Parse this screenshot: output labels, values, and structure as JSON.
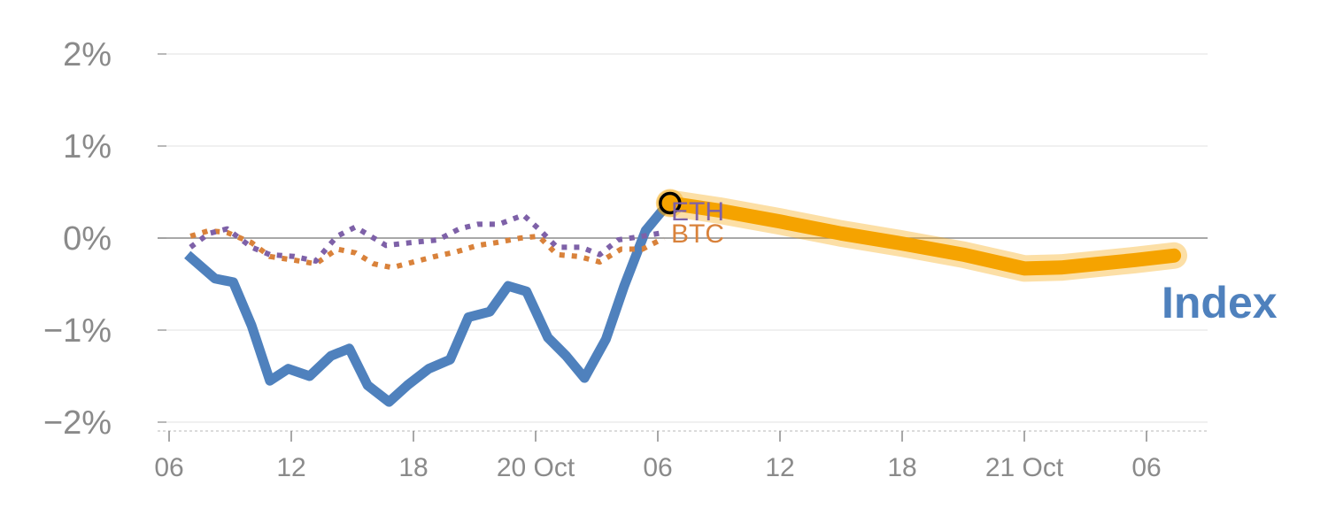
{
  "chart_data": {
    "type": "line",
    "ylim": [
      -2.1,
      2.0
    ],
    "xlim": [
      -0.5,
      16.5
    ],
    "grid": true,
    "yticks": [
      {
        "value": 2,
        "label": "2%"
      },
      {
        "value": 1,
        "label": "1%"
      },
      {
        "value": 0,
        "label": "0%"
      },
      {
        "value": -1,
        "label": "−1%"
      },
      {
        "value": -2,
        "label": "−2%"
      }
    ],
    "xticks": [
      {
        "value": 0,
        "label": "06"
      },
      {
        "value": 2,
        "label": "12"
      },
      {
        "value": 4,
        "label": "18"
      },
      {
        "value": 6,
        "label": "20 Oct"
      },
      {
        "value": 8,
        "label": "06"
      },
      {
        "value": 10,
        "label": "12"
      },
      {
        "value": 12,
        "label": "18"
      },
      {
        "value": 14,
        "label": "21 Oct"
      },
      {
        "value": 16,
        "label": "06"
      }
    ],
    "series": [
      {
        "name": "Index",
        "color": "#4f81bd",
        "style": "solid",
        "x": [
          0.3,
          0.75,
          1.05,
          1.35,
          1.65,
          1.95,
          2.3,
          2.65,
          2.95,
          3.25,
          3.6,
          3.9,
          4.25,
          4.6,
          4.9,
          5.25,
          5.55,
          5.85,
          6.2,
          6.5,
          6.8,
          7.15,
          7.45,
          7.8,
          8.05,
          8.2
        ],
        "y": [
          -0.18,
          -0.44,
          -0.48,
          -0.95,
          -1.55,
          -1.42,
          -1.5,
          -1.28,
          -1.2,
          -1.6,
          -1.78,
          -1.6,
          -1.42,
          -1.32,
          -0.86,
          -0.8,
          -0.52,
          -0.58,
          -1.08,
          -1.28,
          -1.52,
          -1.1,
          -0.52,
          0.08,
          0.28,
          0.38
        ]
      },
      {
        "name": "BTC",
        "color": "#d9823b",
        "style": "dotted",
        "x": [
          0.35,
          0.65,
          0.95,
          1.35,
          1.65,
          2.05,
          2.4,
          2.75,
          3.05,
          3.35,
          3.65,
          4.0,
          4.35,
          4.7,
          5.05,
          5.35,
          5.75,
          6.05,
          6.35,
          6.7,
          7.05,
          7.4,
          7.75,
          8.1
        ],
        "y": [
          0.02,
          0.08,
          0.06,
          -0.05,
          -0.2,
          -0.24,
          -0.28,
          -0.12,
          -0.16,
          -0.28,
          -0.32,
          -0.26,
          -0.2,
          -0.15,
          -0.08,
          -0.05,
          0.0,
          0.02,
          -0.18,
          -0.2,
          -0.26,
          -0.12,
          -0.12,
          0.0
        ]
      },
      {
        "name": "ETH",
        "color": "#7e61a8",
        "style": "dotted",
        "x": [
          0.35,
          0.65,
          0.95,
          1.35,
          1.65,
          2.05,
          2.4,
          2.75,
          3.05,
          3.3,
          3.55,
          3.95,
          4.4,
          4.75,
          5.05,
          5.4,
          5.8,
          6.05,
          6.35,
          6.75,
          7.05,
          7.35,
          7.75,
          8.1
        ],
        "y": [
          -0.1,
          0.05,
          0.1,
          -0.1,
          -0.18,
          -0.2,
          -0.25,
          0.02,
          0.12,
          0.02,
          -0.08,
          -0.05,
          -0.02,
          0.1,
          0.15,
          0.15,
          0.25,
          0.1,
          -0.1,
          -0.1,
          -0.18,
          -0.02,
          0.02,
          0.06
        ]
      },
      {
        "name": "Index",
        "color": "#f5a300",
        "style": "forecast",
        "x": [
          8.2,
          9.0,
          10.0,
          11.0,
          12.0,
          13.0,
          14.0,
          14.6,
          15.2,
          15.8,
          16.45
        ],
        "y": [
          0.38,
          0.3,
          0.18,
          0.05,
          -0.06,
          -0.18,
          -0.33,
          -0.32,
          -0.28,
          -0.24,
          -0.19
        ]
      }
    ],
    "marker": {
      "x": 8.2,
      "y": 0.38
    },
    "labels": {
      "eth": "ETH",
      "btc": "BTC",
      "index": "Index"
    }
  }
}
